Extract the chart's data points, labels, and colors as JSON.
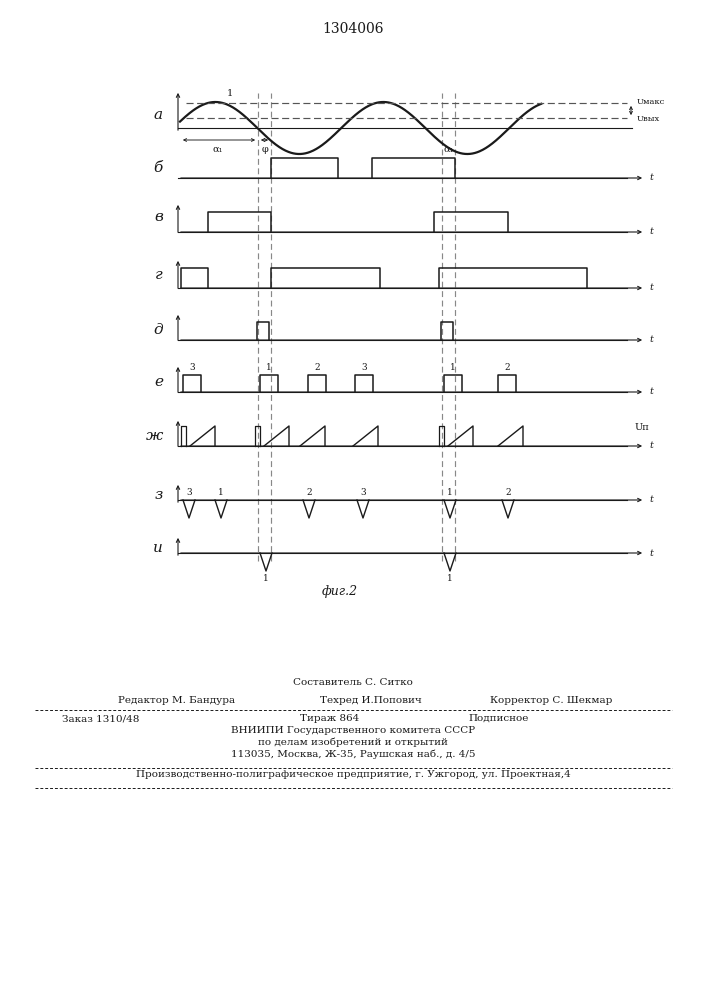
{
  "title": "1304006",
  "fig_caption": "фиг.2",
  "background_color": "#ffffff",
  "line_color": "#1a1a1a",
  "dashed_color": "#555555",
  "row_labels": [
    "а",
    "б",
    "в",
    "г",
    "д",
    "е",
    "ж",
    "з",
    "и"
  ],
  "footer_sestavitel": "Составитель С. Ситко",
  "footer_editor": "Редактор М. Бандура",
  "footer_tehred": "Техред И.Попович",
  "footer_korrektor": "Корректор С. Шекмар",
  "footer_zakaz": "Заказ 1310/48",
  "footer_tirazh": "Тираж 864",
  "footer_podpisnoe": "Подписное",
  "footer_vniipи": "ВНИИПИ Государственного комитета СССР",
  "footer_dela": "по делам изобретений и открытий",
  "footer_adres": "113035, Москва, Ж-35, Раушская наб., д. 4/5",
  "footer_proizv": "Производственно-полиграфическое предприятие, г. Ужгород, ул. Проектная,4"
}
